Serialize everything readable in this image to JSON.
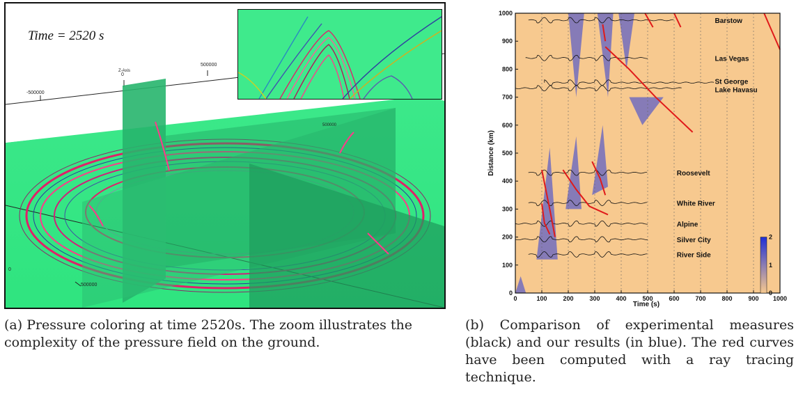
{
  "figure_a": {
    "time_label": "Time = 2520 s",
    "axis_labels": [
      "-500000",
      "0",
      "500000",
      "Z-Axis",
      "500000",
      "500000",
      "0"
    ],
    "caption": "(a) Pressure coloring at time 2520s. The zoom illustrates the complexity of the pressure field on the ground."
  },
  "figure_b": {
    "caption": "(b) Comparison of experimental measures (black) and our results (in blue). The red curves have been computed with a ray tracing technique."
  },
  "chart_data": {
    "type": "heatmap",
    "xlabel": "Time (s)",
    "ylabel": "Distance (km)",
    "xlim": [
      0,
      1000
    ],
    "ylim": [
      0,
      1000
    ],
    "xticks": [
      0,
      100,
      200,
      300,
      400,
      500,
      600,
      700,
      800,
      900,
      1000
    ],
    "yticks": [
      0,
      100,
      200,
      300,
      400,
      500,
      600,
      700,
      800,
      900,
      1000
    ],
    "grid": true,
    "colorbar": {
      "ticks": [
        0,
        1,
        2
      ],
      "colors": [
        "#f7c98f",
        "#1f2fd6"
      ]
    },
    "stations": [
      {
        "name": "Barstow",
        "distance": 975,
        "t_start": 50,
        "t_end": 600
      },
      {
        "name": "Las Vegas",
        "distance": 840,
        "t_start": 40,
        "t_end": 500
      },
      {
        "name": "St George",
        "distance": 752,
        "t_start": 110,
        "t_end": 750
      },
      {
        "name": "Lake Havasu",
        "distance": 732,
        "t_start": 0,
        "t_end": 630
      },
      {
        "name": "Roosevelt",
        "distance": 430,
        "t_start": 50,
        "t_end": 500
      },
      {
        "name": "White River",
        "distance": 322,
        "t_start": 50,
        "t_end": 500
      },
      {
        "name": "Alpine",
        "distance": 248,
        "t_start": 0,
        "t_end": 500
      },
      {
        "name": "Silver City",
        "distance": 192,
        "t_start": 0,
        "t_end": 500
      },
      {
        "name": "River Side",
        "distance": 138,
        "t_start": 50,
        "t_end": 500
      }
    ],
    "ray_curves": [
      [
        [
          100,
          440
        ],
        [
          130,
          300
        ],
        [
          150,
          200
        ]
      ],
      [
        [
          180,
          440
        ],
        [
          230,
          370
        ],
        [
          280,
          310
        ],
        [
          350,
          280
        ]
      ],
      [
        [
          290,
          470
        ],
        [
          320,
          410
        ],
        [
          340,
          350
        ]
      ],
      [
        [
          330,
          960
        ],
        [
          340,
          900
        ]
      ],
      [
        [
          340,
          880
        ],
        [
          430,
          800
        ],
        [
          530,
          700
        ],
        [
          670,
          575
        ]
      ],
      [
        [
          490,
          1000
        ],
        [
          520,
          950
        ]
      ],
      [
        [
          600,
          1000
        ],
        [
          625,
          950
        ]
      ],
      [
        [
          940,
          1000
        ],
        [
          1000,
          870
        ]
      ],
      [
        [
          100,
          320
        ],
        [
          110,
          250
        ],
        [
          130,
          210
        ]
      ]
    ]
  }
}
